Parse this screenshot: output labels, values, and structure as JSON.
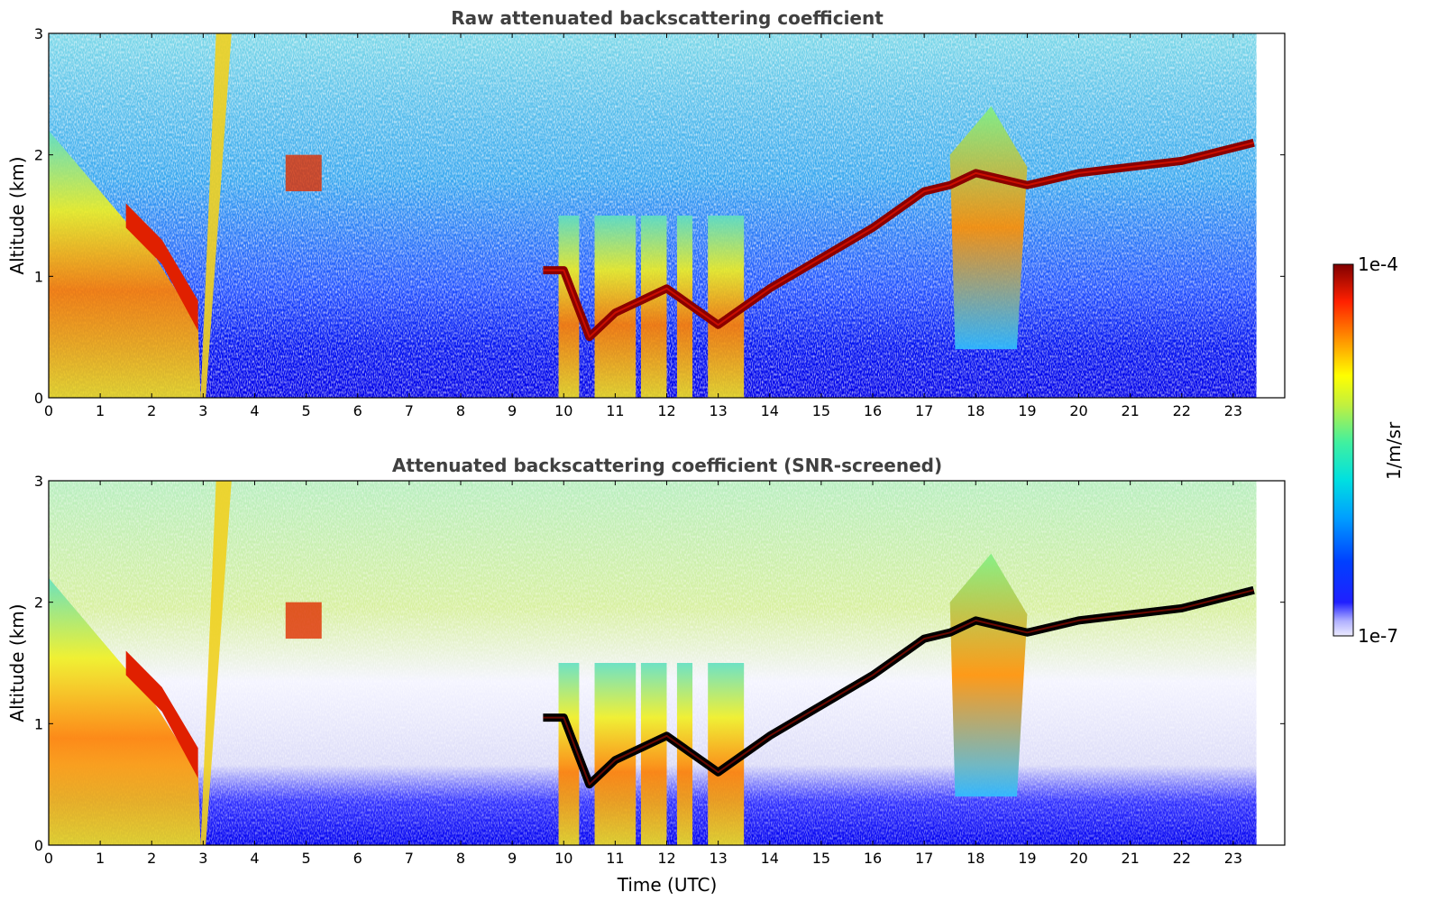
{
  "chart_data": [
    {
      "type": "heatmap",
      "title": "Raw attenuated backscattering coefficient",
      "xlabel": "",
      "ylabel": "Altitude (km)",
      "xlim": [
        0,
        24
      ],
      "ylim": [
        0,
        3
      ],
      "xticks": [
        "0",
        "1",
        "2",
        "3",
        "4",
        "5",
        "6",
        "7",
        "8",
        "9",
        "10",
        "11",
        "12",
        "13",
        "14",
        "15",
        "16",
        "17",
        "18",
        "19",
        "20",
        "21",
        "22",
        "23"
      ],
      "yticks": [
        "0",
        "1",
        "2",
        "3"
      ],
      "x_units": "hours UTC",
      "data_extent_hours": [
        0,
        23.45
      ],
      "boundary_layer_top_km": {
        "hours": [
          9.6,
          10.0,
          10.5,
          11.0,
          12.0,
          13.0,
          14.0,
          15.0,
          16.0,
          17.0,
          17.5,
          18.0,
          19.0,
          20.0,
          21.0,
          22.0,
          23.4
        ],
        "values": [
          1.05,
          1.05,
          0.5,
          0.7,
          0.9,
          0.6,
          0.9,
          1.15,
          1.4,
          1.7,
          1.75,
          1.85,
          1.75,
          1.85,
          1.9,
          1.95,
          2.1
        ]
      },
      "high_signal_regions": [
        {
          "from_hour": 0.0,
          "to_hour": 3.0,
          "description": "clouds 0.5-2.3 km"
        },
        {
          "from_hour": 10.0,
          "to_hour": 14.0,
          "description": "cloud columns 0-1.5 km"
        },
        {
          "from_hour": 17.5,
          "to_hour": 19.0,
          "description": "cloud 0.4-2.4 km"
        }
      ],
      "grid": false
    },
    {
      "type": "heatmap",
      "title": "Attenuated backscattering coefficient (SNR-screened)",
      "xlabel": "Time (UTC)",
      "ylabel": "Altitude (km)",
      "xlim": [
        0,
        24
      ],
      "ylim": [
        0,
        3
      ],
      "xticks": [
        "0",
        "1",
        "2",
        "3",
        "4",
        "5",
        "6",
        "7",
        "8",
        "9",
        "10",
        "11",
        "12",
        "13",
        "14",
        "15",
        "16",
        "17",
        "18",
        "19",
        "20",
        "21",
        "22",
        "23"
      ],
      "yticks": [
        "0",
        "1",
        "2",
        "3"
      ],
      "grid": false
    }
  ],
  "colorbar": {
    "label": "1/m/sr",
    "max_label": "1e-4",
    "min_label": "1e-7",
    "scale": "log"
  },
  "colors": [
    "#e8e8ff",
    "#0000ff",
    "#00b0ff",
    "#40e0c0",
    "#ffff00",
    "#ff8000",
    "#e00000",
    "#800000",
    "#000000"
  ]
}
